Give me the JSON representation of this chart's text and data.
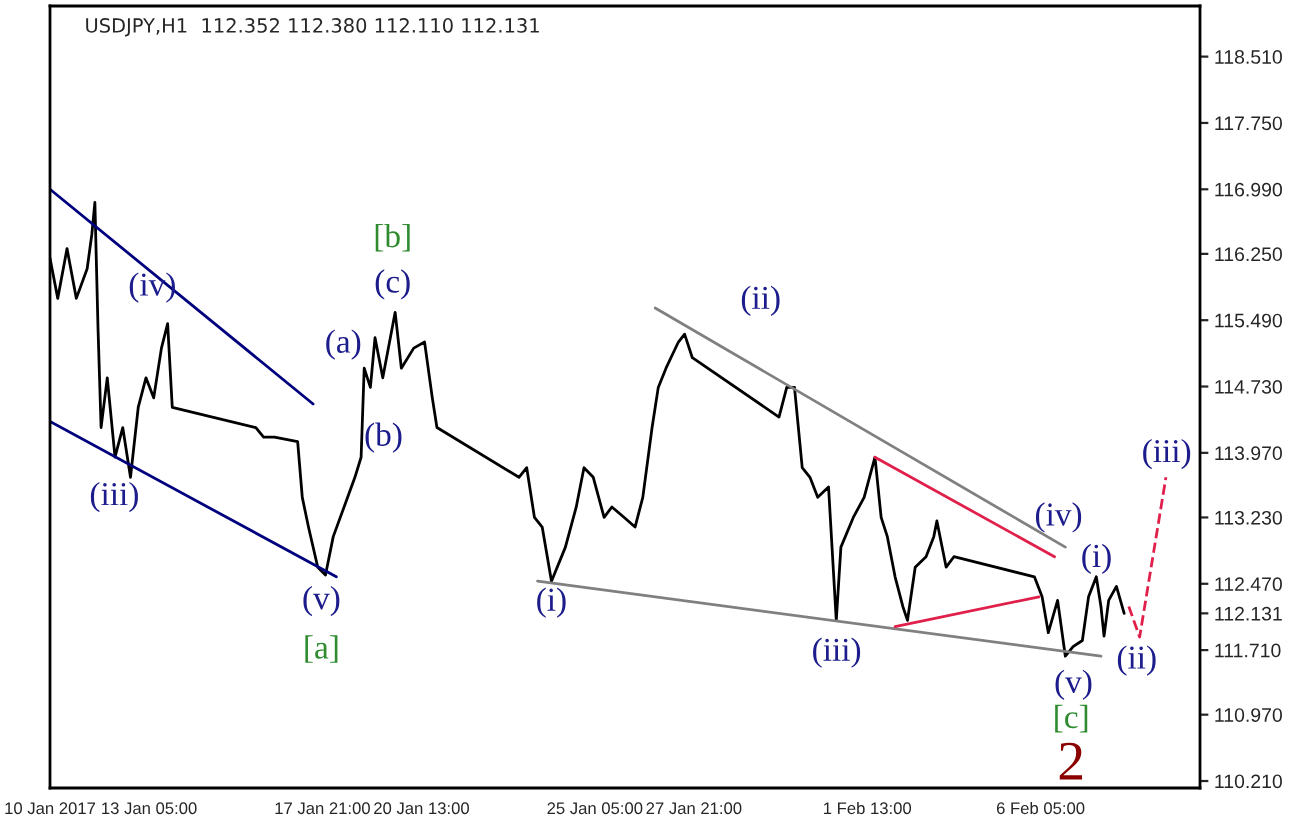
{
  "chart_data": {
    "type": "line",
    "title": "USDJPY,H1  112.352 112.380 112.110 112.131",
    "xlim": [
      "2017-01-10T13:00",
      "2017-02-10T12:00"
    ],
    "ylim": [
      110.13,
      119.09
    ],
    "xticks": [
      {
        "value": "2017-01-10T13:00",
        "label": "10 Jan 2017"
      },
      {
        "value": "2017-01-13T05:00",
        "label": "13 Jan 05:00"
      },
      {
        "value": "2017-01-17T21:00",
        "label": "17 Jan 21:00"
      },
      {
        "value": "2017-01-20T13:00",
        "label": "20 Jan 13:00"
      },
      {
        "value": "2017-01-25T05:00",
        "label": "25 Jan 05:00"
      },
      {
        "value": "2017-01-27T21:00",
        "label": "27 Jan 21:00"
      },
      {
        "value": "2017-02-01T13:00",
        "label": "1 Feb 13:00"
      },
      {
        "value": "2017-02-06T05:00",
        "label": "6 Feb 05:00"
      }
    ],
    "yticks": [
      {
        "value": 110.21,
        "label": "110.210"
      },
      {
        "value": 110.97,
        "label": "110.970"
      },
      {
        "value": 111.71,
        "label": "111.710"
      },
      {
        "value": 112.131,
        "label": "112.131"
      },
      {
        "value": 112.47,
        "label": "112.470"
      },
      {
        "value": 113.23,
        "label": "113.230"
      },
      {
        "value": 113.97,
        "label": "113.970"
      },
      {
        "value": 114.73,
        "label": "114.730"
      },
      {
        "value": 115.49,
        "label": "115.490"
      },
      {
        "value": 116.25,
        "label": "116.250"
      },
      {
        "value": 116.99,
        "label": "116.990"
      },
      {
        "value": 117.75,
        "label": "117.750"
      },
      {
        "value": 118.51,
        "label": "118.510"
      }
    ],
    "series": [
      {
        "color": "#000000",
        "x": [
          "2017-01-10T13:00",
          "2017-01-10T18:00",
          "2017-01-11T00:00",
          "2017-01-11T06:00",
          "2017-01-11T13:00",
          "2017-01-11T16:00",
          "2017-01-11T18:00",
          "2017-01-11T20:00",
          "2017-01-11T22:00",
          "2017-01-12T02:00",
          "2017-01-12T07:00",
          "2017-01-12T12:00",
          "2017-01-12T17:00",
          "2017-01-12T22:00",
          "2017-01-13T03:00",
          "2017-01-13T08:00",
          "2017-01-13T13:00",
          "2017-01-13T17:00",
          "2017-01-13T20:00",
          "2017-01-16T02:00",
          "2017-01-16T07:00",
          "2017-01-16T14:00",
          "2017-01-17T05:00",
          "2017-01-17T08:00",
          "2017-01-17T12:00",
          "2017-01-17T18:00",
          "2017-01-17T23:00",
          "2017-01-18T04:00",
          "2017-01-18T11:00",
          "2017-01-18T18:00",
          "2017-01-18T22:00",
          "2017-01-19T00:00",
          "2017-01-19T04:00",
          "2017-01-19T07:00",
          "2017-01-19T12:00",
          "2017-01-19T20:00",
          "2017-01-20T00:00",
          "2017-01-20T08:00",
          "2017-01-20T15:00",
          "2017-01-20T20:00",
          "2017-01-20T23:00",
          "2017-01-23T04:00",
          "2017-01-23T09:00",
          "2017-01-23T14:00",
          "2017-01-23T19:00",
          "2017-01-24T01:00",
          "2017-01-24T10:00",
          "2017-01-24T17:00",
          "2017-01-24T22:00",
          "2017-01-25T04:00",
          "2017-01-25T11:00",
          "2017-01-25T16:00",
          "2017-01-26T00:00",
          "2017-01-26T07:00",
          "2017-01-26T12:00",
          "2017-01-26T18:00",
          "2017-01-26T22:00",
          "2017-01-27T03:00",
          "2017-01-27T11:00",
          "2017-01-27T15:00",
          "2017-01-27T20:00",
          "2017-01-30T04:00",
          "2017-01-30T09:00",
          "2017-01-30T14:00",
          "2017-01-30T19:00",
          "2017-01-31T00:00",
          "2017-01-31T05:00",
          "2017-01-31T12:00",
          "2017-01-31T17:00",
          "2017-01-31T20:00",
          "2017-02-01T04:00",
          "2017-02-01T11:00",
          "2017-02-01T18:00",
          "2017-02-01T22:00",
          "2017-02-02T02:00",
          "2017-02-02T07:00",
          "2017-02-02T12:00",
          "2017-02-02T15:00",
          "2017-02-02T20:00",
          "2017-02-03T03:00",
          "2017-02-03T08:00",
          "2017-02-03T10:00",
          "2017-02-03T16:00",
          "2017-02-03T21:00",
          "2017-02-06T01:00",
          "2017-02-06T06:00",
          "2017-02-06T10:00",
          "2017-02-06T16:00",
          "2017-02-06T21:00",
          "2017-02-07T02:00",
          "2017-02-07T08:00",
          "2017-02-07T12:00",
          "2017-02-07T17:00",
          "2017-02-07T20:00",
          "2017-02-07T22:00",
          "2017-02-08T01:00",
          "2017-02-08T06:00",
          "2017-02-08T11:00"
        ],
        "values": [
          116.2,
          115.74,
          116.31,
          115.74,
          116.08,
          116.47,
          116.84,
          115.41,
          114.26,
          114.83,
          113.92,
          114.26,
          113.69,
          114.49,
          114.83,
          114.6,
          115.17,
          115.45,
          114.49,
          114.26,
          114.15,
          114.15,
          114.1,
          113.46,
          113.12,
          112.66,
          112.57,
          113.01,
          113.35,
          113.69,
          113.92,
          114.94,
          114.72,
          115.29,
          114.83,
          115.58,
          114.94,
          115.17,
          115.24,
          114.6,
          114.26,
          113.69,
          113.8,
          113.23,
          113.12,
          112.5,
          112.89,
          113.35,
          113.8,
          113.69,
          113.23,
          113.35,
          113.23,
          113.12,
          113.46,
          114.26,
          114.72,
          114.94,
          115.24,
          115.33,
          115.06,
          114.38,
          114.72,
          114.72,
          113.8,
          113.69,
          113.46,
          113.58,
          112.05,
          112.89,
          113.23,
          113.46,
          113.92,
          113.23,
          113.01,
          112.55,
          112.21,
          112.05,
          112.66,
          112.78,
          113.01,
          113.19,
          112.66,
          112.78,
          112.55,
          112.32,
          111.91,
          112.28,
          111.64,
          111.75,
          111.82,
          112.32,
          112.55,
          112.21,
          111.87,
          112.28,
          112.44,
          112.13
        ]
      },
      {
        "color": "#00007f",
        "x": [
          "2017-01-10T13:00",
          "2017-01-17T15:00"
        ],
        "values": [
          116.99,
          114.53
        ]
      },
      {
        "color": "#00007f",
        "x": [
          "2017-01-10T13:00",
          "2017-01-18T06:00"
        ],
        "values": [
          114.33,
          112.55
        ]
      },
      {
        "color": "#808080",
        "x": [
          "2017-01-23T16:00",
          "2017-02-07T20:00"
        ],
        "values": [
          112.5,
          111.64
        ]
      },
      {
        "color": "#808080",
        "x": [
          "2017-01-26T20:00",
          "2017-02-06T21:00"
        ],
        "values": [
          115.63,
          112.89
        ]
      },
      {
        "color": "#e0204a",
        "x": [
          "2017-02-01T18:00",
          "2017-02-06T14:00"
        ],
        "values": [
          113.92,
          112.78
        ]
      },
      {
        "color": "#e0204a",
        "x": [
          "2017-02-02T07:00",
          "2017-02-06T04:00"
        ],
        "values": [
          111.98,
          112.32
        ]
      },
      {
        "color": "#e0204a",
        "line_style": "dashed",
        "x": [
          "2017-02-08T14:00",
          "2017-02-08T21:00",
          "2017-02-09T14:00"
        ],
        "values": [
          112.21,
          111.86,
          113.69
        ]
      }
    ],
    "annotations": [
      "(iv)",
      "(iii)",
      "(v)",
      "[a]",
      "(a)",
      "(b)",
      "(c)",
      "[b]",
      "(i)",
      "(ii)",
      "(iii)",
      "(iv)",
      "(i)",
      "(v)",
      "[c]",
      "2",
      "(ii)",
      "(iii)"
    ]
  }
}
